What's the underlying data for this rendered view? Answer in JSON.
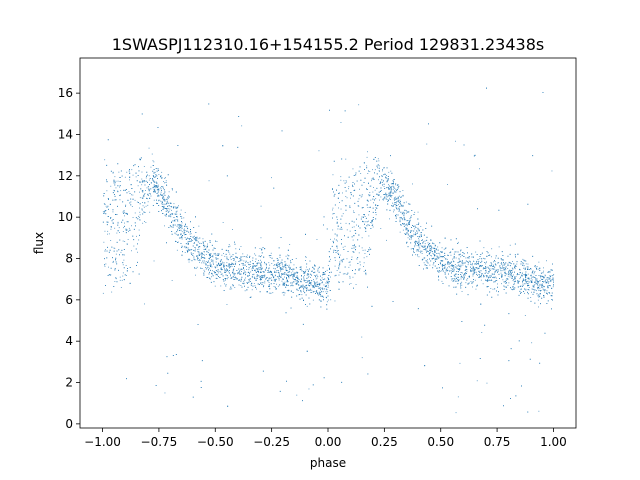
{
  "chart_data": {
    "type": "scatter",
    "title": "1SWASPJ112310.16+154155.2 Period 129831.23438s",
    "xlabel": "phase",
    "ylabel": "flux",
    "xlim": [
      -1.1,
      1.1
    ],
    "ylim": [
      -0.2,
      17.7
    ],
    "xticks": [
      -1.0,
      -0.75,
      -0.5,
      -0.25,
      0.0,
      0.25,
      0.5,
      0.75,
      1.0
    ],
    "xtick_labels": [
      "−1.00",
      "−0.75",
      "−0.50",
      "−0.25",
      "0.00",
      "0.25",
      "0.50",
      "0.75",
      "1.00"
    ],
    "yticks": [
      0,
      2,
      4,
      6,
      8,
      10,
      12,
      14,
      16
    ],
    "ytick_labels": [
      "0",
      "2",
      "4",
      "6",
      "8",
      "10",
      "12",
      "14",
      "16"
    ],
    "grid": false,
    "marker_color": "#1f77b4",
    "series": [
      {
        "phase": [
          -1.0,
          -0.98,
          -0.96,
          -0.94,
          -0.92,
          -0.9,
          -0.88,
          -0.86,
          -0.84,
          -0.82,
          -0.8,
          -0.78,
          -0.76,
          -0.74,
          -0.72,
          -0.7,
          -0.68,
          -0.66,
          -0.64,
          -0.62,
          -0.6,
          -0.58,
          -0.56,
          -0.54,
          -0.52,
          -0.5,
          -0.48,
          -0.46,
          -0.44,
          -0.42,
          -0.4,
          -0.38,
          -0.36,
          -0.34,
          -0.32,
          -0.3,
          -0.28,
          -0.26,
          -0.24,
          -0.22,
          -0.2,
          -0.18,
          -0.16,
          -0.14,
          -0.12,
          -0.1,
          -0.08,
          -0.06,
          -0.04,
          -0.02,
          0.0,
          0.02,
          0.04,
          0.06,
          0.08,
          0.1,
          0.12,
          0.14,
          0.16,
          0.18,
          0.2,
          0.22,
          0.24,
          0.26,
          0.28,
          0.3,
          0.32,
          0.34,
          0.36,
          0.38,
          0.4,
          0.42,
          0.44,
          0.46,
          0.48,
          0.5,
          0.52,
          0.54,
          0.56,
          0.58,
          0.6,
          0.62,
          0.64,
          0.66,
          0.68,
          0.7,
          0.72,
          0.74,
          0.76,
          0.78,
          0.8,
          0.82,
          0.84,
          0.86,
          0.88,
          0.9,
          0.92,
          0.94,
          0.96,
          0.98,
          1.0
        ],
        "flux_upper": [
          12.0,
          12.0,
          12.1,
          12.2,
          12.2,
          12.3,
          12.4,
          12.5,
          12.6,
          12.5,
          12.4,
          12.2,
          11.9,
          11.6,
          11.2,
          10.8,
          10.4,
          10.0,
          9.7,
          9.4,
          9.1,
          8.9,
          8.6,
          8.4,
          8.2,
          8.0,
          7.9,
          7.8,
          7.7,
          7.6,
          7.6,
          7.5,
          7.5,
          7.5,
          7.5,
          7.5,
          7.5,
          7.4,
          7.4,
          7.4,
          7.3,
          7.3,
          7.2,
          7.1,
          7.0,
          7.0,
          6.9,
          6.9,
          6.8,
          6.8,
          6.8,
          12.0,
          12.0,
          12.1,
          12.2,
          12.2,
          12.3,
          12.4,
          12.5,
          12.6,
          12.5,
          12.4,
          12.2,
          11.9,
          11.6,
          11.2,
          10.8,
          10.4,
          10.0,
          9.7,
          9.4,
          9.1,
          8.9,
          8.6,
          8.4,
          8.2,
          8.0,
          7.9,
          7.8,
          7.7,
          7.6,
          7.6,
          7.5,
          7.5,
          7.5,
          7.5,
          7.5,
          7.5,
          7.4,
          7.4,
          7.4,
          7.3,
          7.3,
          7.2,
          7.1,
          7.0,
          7.0,
          6.9,
          6.9,
          6.8,
          6.8
        ],
        "flux_lower": [
          6.9,
          6.9,
          6.8,
          6.8,
          6.8,
          6.8,
          6.9,
          7.1,
          8.5,
          9.8,
          10.8,
          11.3,
          11.2,
          10.8,
          10.3,
          9.8,
          9.4,
          9.0,
          8.7,
          8.4,
          8.2,
          8.0,
          7.8,
          7.7,
          7.6,
          7.5,
          7.5,
          7.4,
          7.4,
          7.4,
          7.3,
          7.3,
          7.3,
          7.3,
          7.3,
          7.3,
          7.3,
          7.2,
          7.2,
          7.2,
          7.1,
          7.1,
          7.0,
          6.9,
          6.9,
          6.8,
          6.8,
          6.8,
          6.7,
          6.7,
          6.7,
          6.9,
          6.9,
          6.8,
          6.8,
          6.8,
          6.8,
          6.9,
          7.1,
          8.5,
          9.8,
          10.8,
          11.3,
          11.2,
          10.8,
          10.3,
          9.8,
          9.4,
          9.0,
          8.7,
          8.4,
          8.2,
          8.0,
          7.8,
          7.7,
          7.6,
          7.5,
          7.5,
          7.4,
          7.4,
          7.4,
          7.3,
          7.3,
          7.3,
          7.3,
          7.3,
          7.3,
          7.3,
          7.2,
          7.2,
          7.2,
          7.1,
          7.1,
          7.0,
          6.9,
          6.9,
          6.8,
          6.8,
          6.8,
          6.7,
          6.7
        ]
      }
    ]
  }
}
